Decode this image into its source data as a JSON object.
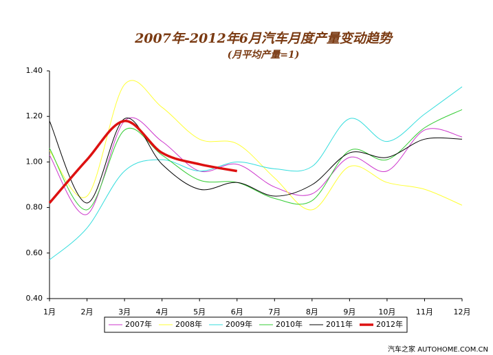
{
  "chart_data": {
    "type": "line",
    "title": "2007年-2012年6月汽车月度产量变动趋势",
    "subtitle": "(月平均产量=1)",
    "watermark": "汽车之家 AUTOHOME.COM.CN",
    "categories": [
      "1月",
      "2月",
      "3月",
      "4月",
      "5月",
      "6月",
      "7月",
      "8月",
      "9月",
      "10月",
      "11月",
      "12月"
    ],
    "ylim": [
      0.4,
      1.4
    ],
    "yticks": [
      {
        "value": 0.4,
        "label": "0.40"
      },
      {
        "value": 0.6,
        "label": "0.60"
      },
      {
        "value": 0.8,
        "label": "0.80"
      },
      {
        "value": 1.0,
        "label": "1.00"
      },
      {
        "value": 1.2,
        "label": "1.20"
      },
      {
        "value": 1.4,
        "label": "1.40"
      }
    ],
    "grid": false,
    "legend": "bottom",
    "series": [
      {
        "name": "2007年",
        "color": "#cc33cc",
        "width": 1,
        "values": [
          1.03,
          0.77,
          1.18,
          1.09,
          0.96,
          0.99,
          0.89,
          0.86,
          1.02,
          0.96,
          1.14,
          1.11
        ]
      },
      {
        "name": "2008年",
        "color": "#ffff33",
        "width": 1,
        "values": [
          1.05,
          0.85,
          1.34,
          1.24,
          1.1,
          1.08,
          0.93,
          0.79,
          0.98,
          0.91,
          0.88,
          0.81
        ]
      },
      {
        "name": "2009年",
        "color": "#33dddd",
        "width": 1,
        "values": [
          0.57,
          0.71,
          0.96,
          1.01,
          0.96,
          1.0,
          0.97,
          0.98,
          1.19,
          1.09,
          1.21,
          1.33
        ]
      },
      {
        "name": "2010年",
        "color": "#33cc33",
        "width": 1,
        "values": [
          1.06,
          0.79,
          1.14,
          1.03,
          0.92,
          0.91,
          0.84,
          0.83,
          1.05,
          1.01,
          1.15,
          1.23
        ]
      },
      {
        "name": "2011年",
        "color": "#000000",
        "width": 1,
        "values": [
          1.18,
          0.82,
          1.19,
          0.99,
          0.88,
          0.91,
          0.85,
          0.9,
          1.04,
          1.02,
          1.1,
          1.1
        ]
      },
      {
        "name": "2012年",
        "color": "#dd1111",
        "width": 3.5,
        "values": [
          0.82,
          1.01,
          1.18,
          1.04,
          0.99,
          0.96,
          null,
          null,
          null,
          null,
          null,
          null
        ]
      }
    ]
  }
}
